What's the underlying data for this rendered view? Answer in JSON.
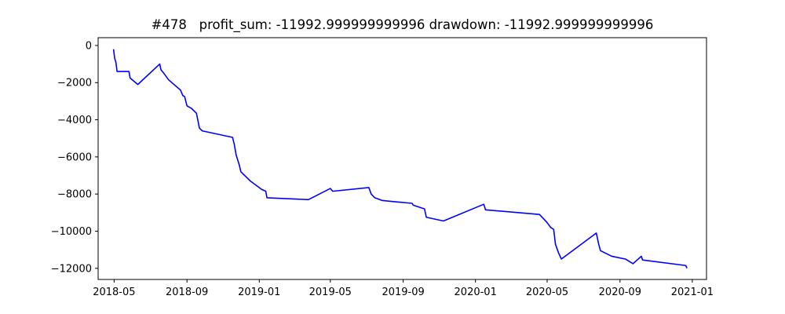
{
  "chart_data": {
    "type": "line",
    "title": "#478   profit_sum: -11992.999999999996 drawdown: -11992.999999999996",
    "xlabel": "",
    "ylabel": "",
    "x_ticks": [
      "2018-05",
      "2018-09",
      "2019-01",
      "2019-05",
      "2019-09",
      "2020-01",
      "2020-05",
      "2020-09",
      "2021-01"
    ],
    "y_ticks": [
      0,
      -2000,
      -4000,
      -6000,
      -8000,
      -10000,
      -12000
    ],
    "y_tick_labels": [
      "0",
      "−2000",
      "−4000",
      "−6000",
      "−8000",
      "−10000",
      "−12000"
    ],
    "xlim": [
      "2018-04-04",
      "2021-01-25"
    ],
    "ylim": [
      -12600,
      420
    ],
    "grid": false,
    "series": [
      {
        "color": "#0000ff",
        "points": [
          [
            "2018-04-30",
            -200
          ],
          [
            "2018-05-02",
            -700
          ],
          [
            "2018-05-04",
            -900
          ],
          [
            "2018-05-06",
            -1400
          ],
          [
            "2018-05-26",
            -1400
          ],
          [
            "2018-05-28",
            -1750
          ],
          [
            "2018-06-10",
            -2100
          ],
          [
            "2018-07-17",
            -1000
          ],
          [
            "2018-07-19",
            -1300
          ],
          [
            "2018-07-24",
            -1500
          ],
          [
            "2018-08-01",
            -1850
          ],
          [
            "2018-08-21",
            -2400
          ],
          [
            "2018-08-25",
            -2700
          ],
          [
            "2018-08-28",
            -2750
          ],
          [
            "2018-09-01",
            -3250
          ],
          [
            "2018-09-09",
            -3400
          ],
          [
            "2018-09-17",
            -3650
          ],
          [
            "2018-09-22",
            -4450
          ],
          [
            "2018-09-27",
            -4600
          ],
          [
            "2018-11-17",
            -4950
          ],
          [
            "2018-11-20",
            -5350
          ],
          [
            "2018-11-23",
            -5900
          ],
          [
            "2018-11-28",
            -6400
          ],
          [
            "2018-12-01",
            -6800
          ],
          [
            "2018-12-17",
            -7300
          ],
          [
            "2019-01-05",
            -7750
          ],
          [
            "2019-01-12",
            -7850
          ],
          [
            "2019-01-14",
            -8200
          ],
          [
            "2019-03-25",
            -8300
          ],
          [
            "2019-05-01",
            -7700
          ],
          [
            "2019-05-05",
            -7850
          ],
          [
            "2019-07-05",
            -7650
          ],
          [
            "2019-07-09",
            -8000
          ],
          [
            "2019-07-15",
            -8200
          ],
          [
            "2019-07-28",
            -8350
          ],
          [
            "2019-09-16",
            -8500
          ],
          [
            "2019-09-18",
            -8600
          ],
          [
            "2019-10-07",
            -8800
          ],
          [
            "2019-10-10",
            -9250
          ],
          [
            "2019-11-08",
            -9450
          ],
          [
            "2020-01-15",
            -8550
          ],
          [
            "2020-01-18",
            -8850
          ],
          [
            "2020-04-18",
            -9100
          ],
          [
            "2020-04-30",
            -9500
          ],
          [
            "2020-05-07",
            -9800
          ],
          [
            "2020-05-12",
            -9900
          ],
          [
            "2020-05-15",
            -10700
          ],
          [
            "2020-05-20",
            -11150
          ],
          [
            "2020-05-25",
            -11500
          ],
          [
            "2020-07-23",
            -10100
          ],
          [
            "2020-07-27",
            -10700
          ],
          [
            "2020-07-30",
            -11050
          ],
          [
            "2020-08-18",
            -11350
          ],
          [
            "2020-09-10",
            -11500
          ],
          [
            "2020-09-23",
            -11750
          ],
          [
            "2020-10-07",
            -11350
          ],
          [
            "2020-10-09",
            -11550
          ],
          [
            "2020-12-21",
            -11850
          ],
          [
            "2020-12-23",
            -11993
          ]
        ]
      }
    ]
  }
}
